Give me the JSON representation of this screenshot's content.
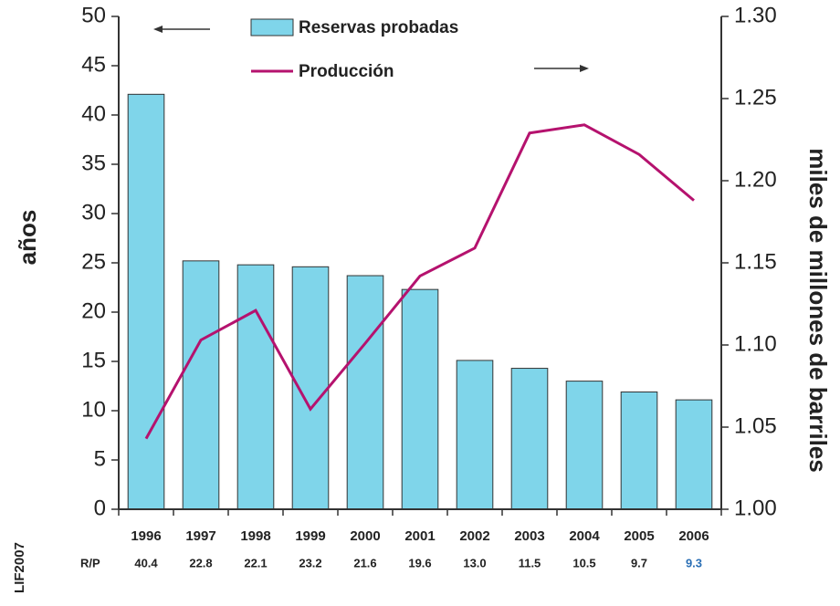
{
  "chart_data": {
    "type": "bar_line",
    "categories": [
      "1996",
      "1997",
      "1998",
      "1999",
      "2000",
      "2001",
      "2002",
      "2003",
      "2004",
      "2005",
      "2006"
    ],
    "series": [
      {
        "name": "Reservas probadas",
        "type": "bar",
        "color": "#7fd5ea",
        "values": [
          42.1,
          25.2,
          24.8,
          24.6,
          23.7,
          22.3,
          15.1,
          14.3,
          13.0,
          11.9,
          11.1
        ]
      },
      {
        "name": "Producción",
        "type": "line",
        "axis": "y2",
        "color": "#b5126e",
        "values": [
          1.043,
          1.103,
          1.121,
          1.061,
          1.101,
          1.142,
          1.159,
          1.229,
          1.234,
          1.216,
          1.188
        ]
      }
    ],
    "ylabel": "años",
    "y2label": "miles de millones de barriles",
    "ylim": [
      0,
      50
    ],
    "yticks": [
      0,
      5,
      10,
      15,
      20,
      25,
      30,
      35,
      40,
      45,
      50
    ],
    "y2lim": [
      1.0,
      1.3
    ],
    "y2ticks": [
      {
        "value": 1.0,
        "label": "1.00"
      },
      {
        "value": 1.05,
        "label": "1.05"
      },
      {
        "value": 1.1,
        "label": "1.10"
      },
      {
        "value": 1.15,
        "label": "1.15"
      },
      {
        "value": 1.2,
        "label": "1.20"
      },
      {
        "value": 1.25,
        "label": "1.25"
      },
      {
        "value": 1.3,
        "label": "1.30"
      }
    ],
    "rp_label": "R/P",
    "rp_values": [
      "40.4",
      "22.8",
      "22.1",
      "23.2",
      "21.6",
      "19.6",
      "13.0",
      "11.5",
      "10.5",
      "9.7",
      "9.3"
    ],
    "rp_highlight_color": "#2a6fb5",
    "source": "LIF2007"
  }
}
